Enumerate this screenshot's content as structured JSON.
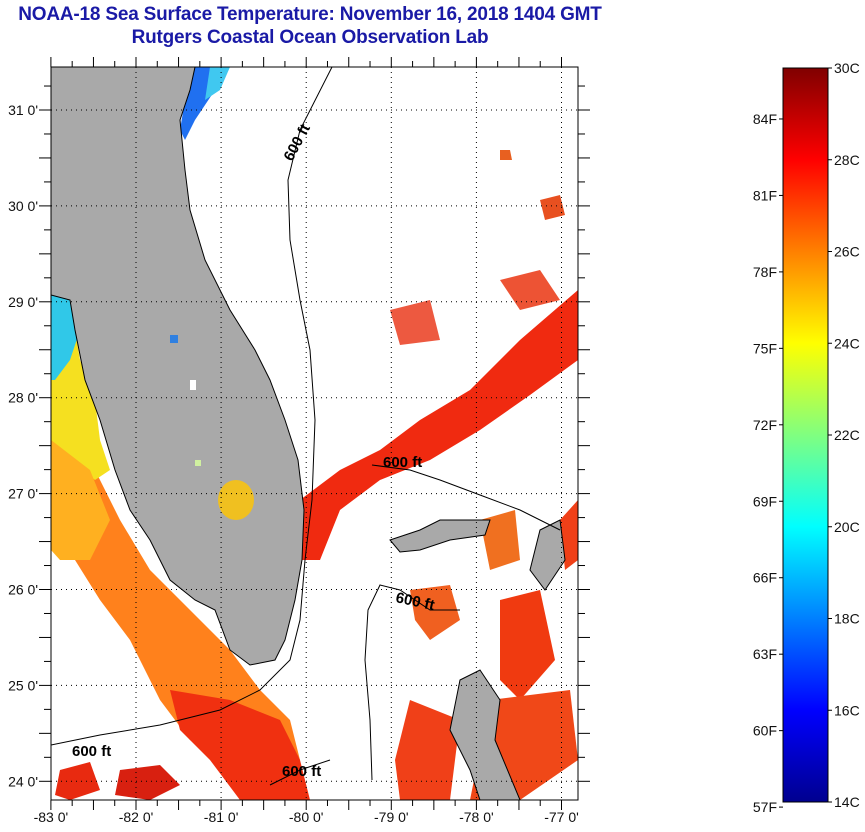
{
  "header": {
    "title": "NOAA-18 Sea Surface Temperature:  November 16, 2018 1404 GMT",
    "subtitle": "Rutgers Coastal Ocean Observation Lab"
  },
  "map": {
    "lon_range": [
      -83.0,
      -76.8
    ],
    "lat_range": [
      23.8,
      31.45
    ],
    "x_ticks": [
      {
        "value": -83,
        "label": "-83 0'"
      },
      {
        "value": -82,
        "label": "-82 0'"
      },
      {
        "value": -81,
        "label": "-81 0'"
      },
      {
        "value": -80,
        "label": "-80 0'"
      },
      {
        "value": -79,
        "label": "-79 0'"
      },
      {
        "value": -78,
        "label": "-78 0'"
      },
      {
        "value": -77,
        "label": "-77 0'"
      }
    ],
    "y_ticks": [
      {
        "value": 31,
        "label": "31 0'"
      },
      {
        "value": 30,
        "label": "30 0'"
      },
      {
        "value": 29,
        "label": "29 0'"
      },
      {
        "value": 28,
        "label": "28 0'"
      },
      {
        "value": 27,
        "label": "27 0'"
      },
      {
        "value": 26,
        "label": "26 0'"
      },
      {
        "value": 25,
        "label": "25 0'"
      },
      {
        "value": 24,
        "label": "24 0'"
      }
    ],
    "contour_labels": [
      "600 ft",
      "600 ft",
      "600 ft",
      "600 ft",
      "600 ft"
    ],
    "colors": {
      "land": "#a9a9a9",
      "title": "#1a1aa6"
    }
  },
  "colorbar": {
    "celsius_range": [
      14,
      30
    ],
    "celsius_ticks": [
      {
        "value": 30,
        "label": "30C"
      },
      {
        "value": 28,
        "label": "28C"
      },
      {
        "value": 26,
        "label": "26C"
      },
      {
        "value": 24,
        "label": "24C"
      },
      {
        "value": 22,
        "label": "22C"
      },
      {
        "value": 20,
        "label": "20C"
      },
      {
        "value": 18,
        "label": "18C"
      },
      {
        "value": 16,
        "label": "16C"
      },
      {
        "value": 14,
        "label": "14C"
      }
    ],
    "fahrenheit_ticks": [
      {
        "value": 84,
        "label": "84F"
      },
      {
        "value": 81,
        "label": "81F"
      },
      {
        "value": 78,
        "label": "78F"
      },
      {
        "value": 75,
        "label": "75F"
      },
      {
        "value": 72,
        "label": "72F"
      },
      {
        "value": 69,
        "label": "69F"
      },
      {
        "value": 66,
        "label": "66F"
      },
      {
        "value": 63,
        "label": "63F"
      },
      {
        "value": 60,
        "label": "60F"
      },
      {
        "value": 57,
        "label": "57F"
      }
    ],
    "colormap": [
      "#00008f",
      "#0000ff",
      "#0080ff",
      "#00ffff",
      "#80ff80",
      "#ffff00",
      "#ff8000",
      "#ff0000",
      "#800000"
    ]
  }
}
